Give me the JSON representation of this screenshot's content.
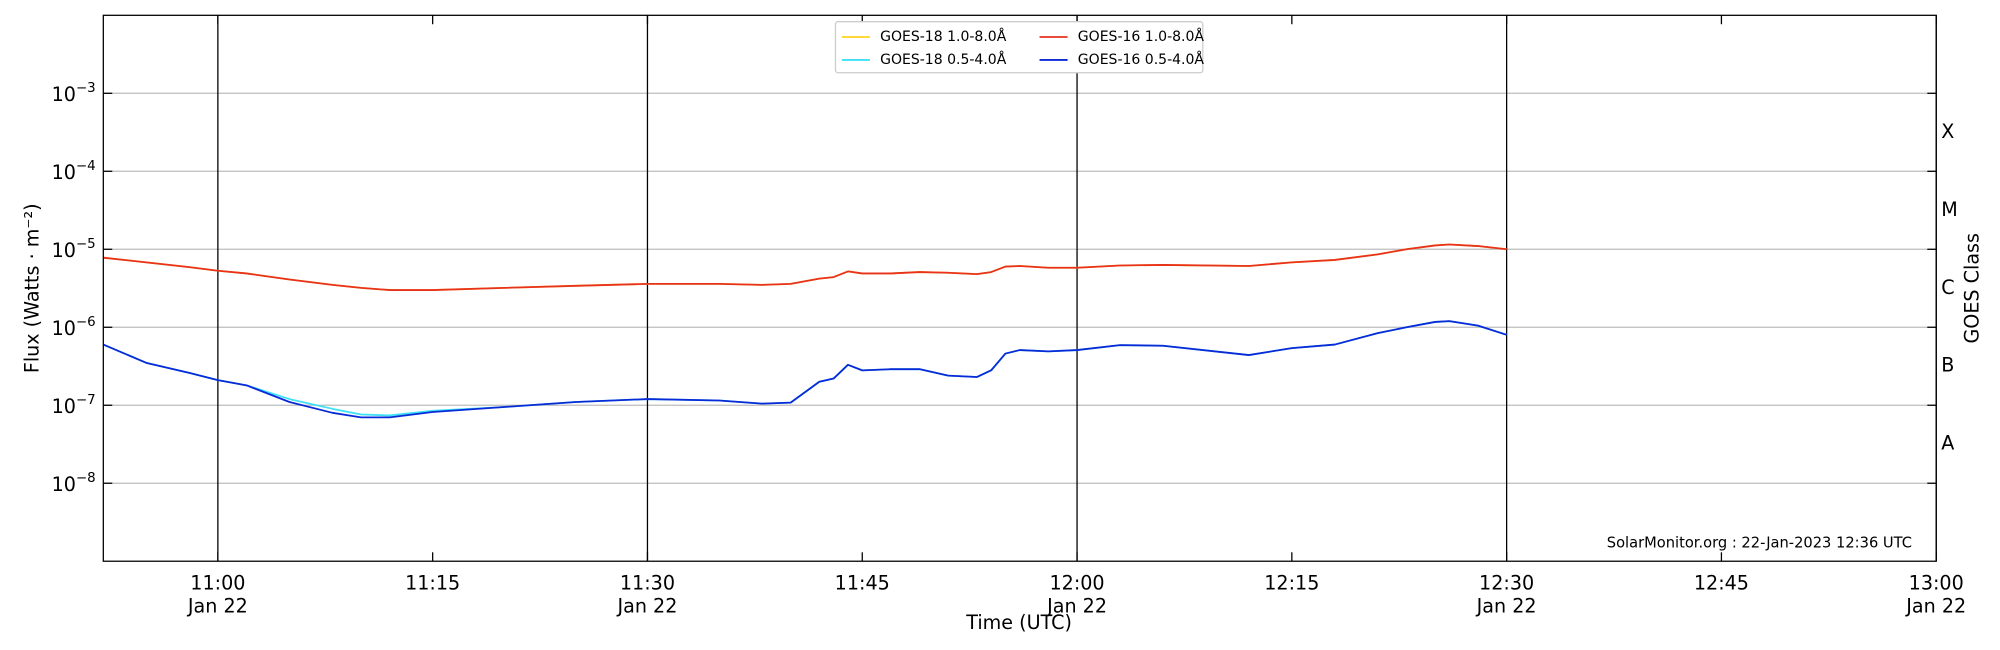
{
  "chart_data": {
    "type": "line",
    "log_y": true,
    "ylabel": "Flux (Watts · m⁻²)",
    "xlabel": "Time (UTC)",
    "y2label": "GOES Class",
    "annotation": "SolarMonitor.org : 22-Jan-2023 12:36 UTC",
    "xlim": [
      "10:52",
      "13:00"
    ],
    "xticks": [
      {
        "value": "11:00",
        "label": "11:00",
        "date": "Jan 22"
      },
      "11:15",
      {
        "value": "11:30",
        "label": "11:30",
        "date": "Jan 22"
      },
      "11:45",
      {
        "value": "12:00",
        "label": "12:00",
        "date": "Jan 22"
      },
      "12:15",
      {
        "value": "12:30",
        "label": "12:30",
        "date": "Jan 22"
      },
      "12:45",
      {
        "value": "13:00",
        "label": "13:00",
        "date": "Jan 22"
      }
    ],
    "ylim": [
      1e-09,
      0.01
    ],
    "yticks": [
      {
        "value": 1e-08,
        "label": "10",
        "exponent": "−8"
      },
      {
        "value": 1e-07,
        "label": "10",
        "exponent": "−7"
      },
      {
        "value": 1e-06,
        "label": "10",
        "exponent": "−6"
      },
      {
        "value": 1e-05,
        "label": "10",
        "exponent": "−5"
      },
      {
        "value": 0.0001,
        "label": "10",
        "exponent": "−4"
      },
      {
        "value": 0.001,
        "label": "10",
        "exponent": "−3"
      }
    ],
    "y2lim": [
      1e-09,
      0.01
    ],
    "y2ticks": [
      {
        "value": 3.162e-08,
        "label": "A"
      },
      {
        "value": 3.162e-07,
        "label": "B"
      },
      {
        "value": 3.162e-06,
        "label": "C"
      },
      {
        "value": 3.162e-05,
        "label": "M"
      },
      {
        "value": 0.0003162,
        "label": "X"
      }
    ],
    "grid": true,
    "legend": "top",
    "x": [
      "10:52",
      "10:55",
      "10:58",
      "11:00",
      "11:02",
      "11:05",
      "11:08",
      "11:10",
      "11:12",
      "11:15",
      "11:20",
      "11:25",
      "11:30",
      "11:35",
      "11:38",
      "11:40",
      "11:42",
      "11:43",
      "11:44",
      "11:45",
      "11:47",
      "11:49",
      "11:51",
      "11:53",
      "11:54",
      "11:55",
      "11:56",
      "11:58",
      "12:00",
      "12:03",
      "12:06",
      "12:12",
      "12:15",
      "12:18",
      "12:21",
      "12:23",
      "12:25",
      "12:26",
      "12:28",
      "12:30"
    ],
    "series": [
      {
        "name": "GOES-18 1.0-8.0Å",
        "color": "#ffd21e",
        "values": [
          7.8e-06,
          6.8e-06,
          5.9e-06,
          5.3e-06,
          4.9e-06,
          4.1e-06,
          3.5e-06,
          3.2e-06,
          3e-06,
          3e-06,
          3.2e-06,
          3.4e-06,
          3.6e-06,
          3.6e-06,
          3.5e-06,
          3.6e-06,
          4.2e-06,
          4.4e-06,
          5.2e-06,
          4.9e-06,
          4.9e-06,
          5.1e-06,
          5e-06,
          4.8e-06,
          5.1e-06,
          6e-06,
          6.1e-06,
          5.8e-06,
          5.8e-06,
          6.2e-06,
          6.3e-06,
          6.1e-06,
          6.8e-06,
          7.3e-06,
          8.6e-06,
          1e-05,
          1.12e-05,
          1.15e-05,
          1.1e-05,
          1e-05
        ]
      },
      {
        "name": "GOES-18 0.5-4.0Å",
        "color": "#3ee0f5",
        "values": [
          6e-07,
          3.5e-07,
          2.6e-07,
          2.1e-07,
          1.8e-07,
          1.2e-07,
          9e-08,
          7.6e-08,
          7.4e-08,
          8.5e-08,
          9.5e-08,
          1.1e-07,
          1.2e-07,
          1.15e-07,
          1.05e-07,
          1.08e-07,
          2e-07,
          2.2e-07,
          3.3e-07,
          2.8e-07,
          2.9e-07,
          2.9e-07,
          2.4e-07,
          2.3e-07,
          2.8e-07,
          4.6e-07,
          5.1e-07,
          4.9e-07,
          5.1e-07,
          5.9e-07,
          5.8e-07,
          4.4e-07,
          5.4e-07,
          6e-07,
          8.4e-07,
          1e-06,
          1.17e-06,
          1.2e-06,
          1.05e-06,
          8e-07
        ]
      },
      {
        "name": "GOES-16 1.0-8.0Å",
        "color": "#e8321e",
        "values": [
          7.8e-06,
          6.8e-06,
          5.9e-06,
          5.3e-06,
          4.9e-06,
          4.1e-06,
          3.5e-06,
          3.2e-06,
          3e-06,
          3e-06,
          3.2e-06,
          3.4e-06,
          3.6e-06,
          3.6e-06,
          3.5e-06,
          3.6e-06,
          4.2e-06,
          4.4e-06,
          5.2e-06,
          4.9e-06,
          4.9e-06,
          5.1e-06,
          5e-06,
          4.8e-06,
          5.1e-06,
          6e-06,
          6.1e-06,
          5.8e-06,
          5.8e-06,
          6.2e-06,
          6.3e-06,
          6.1e-06,
          6.8e-06,
          7.3e-06,
          8.6e-06,
          1e-05,
          1.12e-05,
          1.15e-05,
          1.1e-05,
          1e-05
        ]
      },
      {
        "name": "GOES-16 0.5-4.0Å",
        "color": "#0a2ad8",
        "values": [
          6e-07,
          3.5e-07,
          2.6e-07,
          2.1e-07,
          1.8e-07,
          1.1e-07,
          8e-08,
          7e-08,
          7e-08,
          8.2e-08,
          9.5e-08,
          1.1e-07,
          1.2e-07,
          1.15e-07,
          1.05e-07,
          1.08e-07,
          2e-07,
          2.2e-07,
          3.3e-07,
          2.8e-07,
          2.9e-07,
          2.9e-07,
          2.4e-07,
          2.3e-07,
          2.8e-07,
          4.6e-07,
          5.1e-07,
          4.9e-07,
          5.1e-07,
          5.9e-07,
          5.8e-07,
          4.4e-07,
          5.4e-07,
          6e-07,
          8.4e-07,
          1e-06,
          1.17e-06,
          1.2e-06,
          1.05e-06,
          8e-07
        ]
      }
    ]
  }
}
